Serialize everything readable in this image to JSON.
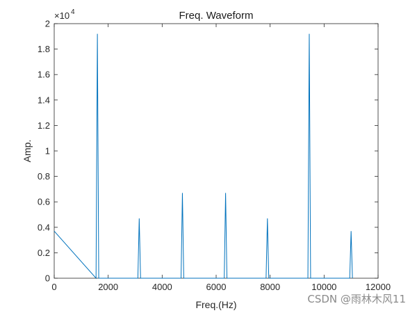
{
  "chart_data": {
    "type": "line",
    "title": "Freq. Waveform",
    "xlabel": "Freq.(Hz)",
    "ylabel": "Amp.",
    "xlim": [
      0,
      12000
    ],
    "ylim": [
      0,
      20000
    ],
    "y_exponent_label": "×10",
    "y_exponent_power": "4",
    "xticks": [
      0,
      2000,
      4000,
      6000,
      8000,
      10000,
      12000
    ],
    "xtick_labels": [
      "0",
      "2000",
      "4000",
      "6000",
      "8000",
      "10000",
      "12000"
    ],
    "yticks": [
      0,
      2000,
      4000,
      6000,
      8000,
      10000,
      12000,
      14000,
      16000,
      18000,
      20000
    ],
    "ytick_labels": [
      "0",
      "0.2",
      "0.4",
      "0.6",
      "0.8",
      "1",
      "1.2",
      "1.4",
      "1.6",
      "1.8",
      "2"
    ],
    "grid": false,
    "line_color": "#0072BD",
    "series": [
      {
        "x": [
          0,
          1550,
          1600,
          1650,
          3100,
          3150,
          3200,
          4700,
          4750,
          4800,
          6300,
          6350,
          6400,
          7850,
          7900,
          7950,
          9400,
          9450,
          9500,
          10950,
          11000,
          11050
        ],
        "values": [
          3700,
          0,
          19200,
          0,
          0,
          4700,
          0,
          0,
          6700,
          0,
          0,
          6700,
          0,
          0,
          4700,
          0,
          0,
          19200,
          0,
          0,
          3700,
          0
        ]
      }
    ]
  },
  "watermark": "CSDN @雨林木风11"
}
